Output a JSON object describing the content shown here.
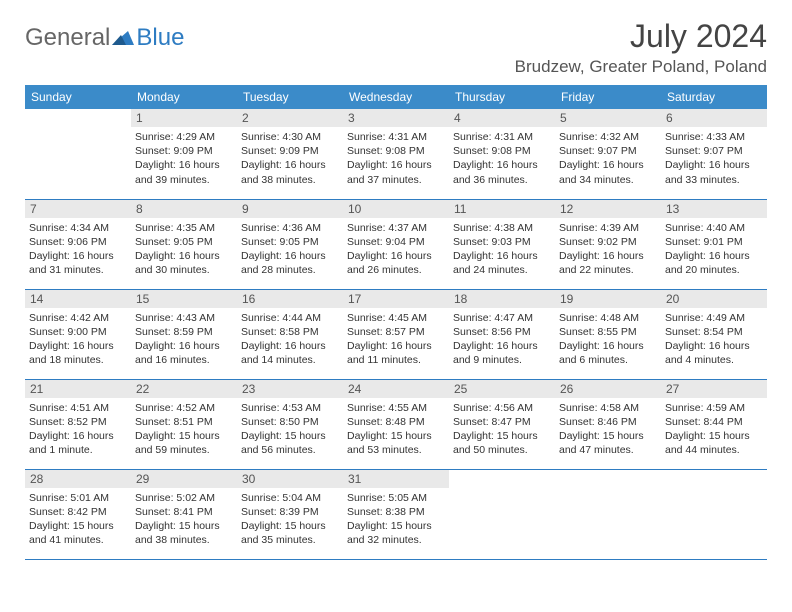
{
  "brand": {
    "part1": "General",
    "part2": "Blue"
  },
  "title": "July 2024",
  "location": "Brudzew, Greater Poland, Poland",
  "colors": {
    "header_bg": "#3b8bc9",
    "header_text": "#ffffff",
    "daynum_bg": "#e9e9e9",
    "border": "#2e7cc2",
    "brand_blue": "#2e7cc2",
    "brand_gray": "#666666"
  },
  "weekdays": [
    "Sunday",
    "Monday",
    "Tuesday",
    "Wednesday",
    "Thursday",
    "Friday",
    "Saturday"
  ],
  "weeks": [
    [
      {
        "n": "",
        "sr": "",
        "ss": "",
        "dl": ""
      },
      {
        "n": "1",
        "sr": "Sunrise: 4:29 AM",
        "ss": "Sunset: 9:09 PM",
        "dl": "Daylight: 16 hours and 39 minutes."
      },
      {
        "n": "2",
        "sr": "Sunrise: 4:30 AM",
        "ss": "Sunset: 9:09 PM",
        "dl": "Daylight: 16 hours and 38 minutes."
      },
      {
        "n": "3",
        "sr": "Sunrise: 4:31 AM",
        "ss": "Sunset: 9:08 PM",
        "dl": "Daylight: 16 hours and 37 minutes."
      },
      {
        "n": "4",
        "sr": "Sunrise: 4:31 AM",
        "ss": "Sunset: 9:08 PM",
        "dl": "Daylight: 16 hours and 36 minutes."
      },
      {
        "n": "5",
        "sr": "Sunrise: 4:32 AM",
        "ss": "Sunset: 9:07 PM",
        "dl": "Daylight: 16 hours and 34 minutes."
      },
      {
        "n": "6",
        "sr": "Sunrise: 4:33 AM",
        "ss": "Sunset: 9:07 PM",
        "dl": "Daylight: 16 hours and 33 minutes."
      }
    ],
    [
      {
        "n": "7",
        "sr": "Sunrise: 4:34 AM",
        "ss": "Sunset: 9:06 PM",
        "dl": "Daylight: 16 hours and 31 minutes."
      },
      {
        "n": "8",
        "sr": "Sunrise: 4:35 AM",
        "ss": "Sunset: 9:05 PM",
        "dl": "Daylight: 16 hours and 30 minutes."
      },
      {
        "n": "9",
        "sr": "Sunrise: 4:36 AM",
        "ss": "Sunset: 9:05 PM",
        "dl": "Daylight: 16 hours and 28 minutes."
      },
      {
        "n": "10",
        "sr": "Sunrise: 4:37 AM",
        "ss": "Sunset: 9:04 PM",
        "dl": "Daylight: 16 hours and 26 minutes."
      },
      {
        "n": "11",
        "sr": "Sunrise: 4:38 AM",
        "ss": "Sunset: 9:03 PM",
        "dl": "Daylight: 16 hours and 24 minutes."
      },
      {
        "n": "12",
        "sr": "Sunrise: 4:39 AM",
        "ss": "Sunset: 9:02 PM",
        "dl": "Daylight: 16 hours and 22 minutes."
      },
      {
        "n": "13",
        "sr": "Sunrise: 4:40 AM",
        "ss": "Sunset: 9:01 PM",
        "dl": "Daylight: 16 hours and 20 minutes."
      }
    ],
    [
      {
        "n": "14",
        "sr": "Sunrise: 4:42 AM",
        "ss": "Sunset: 9:00 PM",
        "dl": "Daylight: 16 hours and 18 minutes."
      },
      {
        "n": "15",
        "sr": "Sunrise: 4:43 AM",
        "ss": "Sunset: 8:59 PM",
        "dl": "Daylight: 16 hours and 16 minutes."
      },
      {
        "n": "16",
        "sr": "Sunrise: 4:44 AM",
        "ss": "Sunset: 8:58 PM",
        "dl": "Daylight: 16 hours and 14 minutes."
      },
      {
        "n": "17",
        "sr": "Sunrise: 4:45 AM",
        "ss": "Sunset: 8:57 PM",
        "dl": "Daylight: 16 hours and 11 minutes."
      },
      {
        "n": "18",
        "sr": "Sunrise: 4:47 AM",
        "ss": "Sunset: 8:56 PM",
        "dl": "Daylight: 16 hours and 9 minutes."
      },
      {
        "n": "19",
        "sr": "Sunrise: 4:48 AM",
        "ss": "Sunset: 8:55 PM",
        "dl": "Daylight: 16 hours and 6 minutes."
      },
      {
        "n": "20",
        "sr": "Sunrise: 4:49 AM",
        "ss": "Sunset: 8:54 PM",
        "dl": "Daylight: 16 hours and 4 minutes."
      }
    ],
    [
      {
        "n": "21",
        "sr": "Sunrise: 4:51 AM",
        "ss": "Sunset: 8:52 PM",
        "dl": "Daylight: 16 hours and 1 minute."
      },
      {
        "n": "22",
        "sr": "Sunrise: 4:52 AM",
        "ss": "Sunset: 8:51 PM",
        "dl": "Daylight: 15 hours and 59 minutes."
      },
      {
        "n": "23",
        "sr": "Sunrise: 4:53 AM",
        "ss": "Sunset: 8:50 PM",
        "dl": "Daylight: 15 hours and 56 minutes."
      },
      {
        "n": "24",
        "sr": "Sunrise: 4:55 AM",
        "ss": "Sunset: 8:48 PM",
        "dl": "Daylight: 15 hours and 53 minutes."
      },
      {
        "n": "25",
        "sr": "Sunrise: 4:56 AM",
        "ss": "Sunset: 8:47 PM",
        "dl": "Daylight: 15 hours and 50 minutes."
      },
      {
        "n": "26",
        "sr": "Sunrise: 4:58 AM",
        "ss": "Sunset: 8:46 PM",
        "dl": "Daylight: 15 hours and 47 minutes."
      },
      {
        "n": "27",
        "sr": "Sunrise: 4:59 AM",
        "ss": "Sunset: 8:44 PM",
        "dl": "Daylight: 15 hours and 44 minutes."
      }
    ],
    [
      {
        "n": "28",
        "sr": "Sunrise: 5:01 AM",
        "ss": "Sunset: 8:42 PM",
        "dl": "Daylight: 15 hours and 41 minutes."
      },
      {
        "n": "29",
        "sr": "Sunrise: 5:02 AM",
        "ss": "Sunset: 8:41 PM",
        "dl": "Daylight: 15 hours and 38 minutes."
      },
      {
        "n": "30",
        "sr": "Sunrise: 5:04 AM",
        "ss": "Sunset: 8:39 PM",
        "dl": "Daylight: 15 hours and 35 minutes."
      },
      {
        "n": "31",
        "sr": "Sunrise: 5:05 AM",
        "ss": "Sunset: 8:38 PM",
        "dl": "Daylight: 15 hours and 32 minutes."
      },
      {
        "n": "",
        "sr": "",
        "ss": "",
        "dl": ""
      },
      {
        "n": "",
        "sr": "",
        "ss": "",
        "dl": ""
      },
      {
        "n": "",
        "sr": "",
        "ss": "",
        "dl": ""
      }
    ]
  ]
}
